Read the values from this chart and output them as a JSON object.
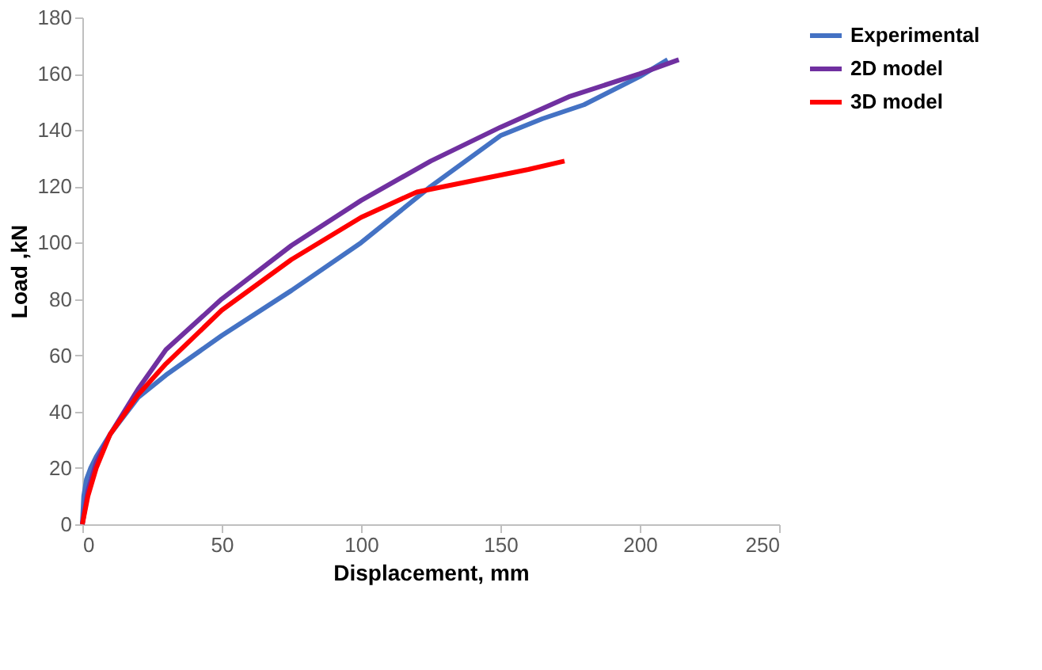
{
  "chart_data": {
    "type": "line",
    "xlabel": "Displacement, mm",
    "ylabel": "Load ,kN",
    "xlim": [
      0,
      250
    ],
    "ylim": [
      0,
      180
    ],
    "xticks": [
      0,
      50,
      100,
      150,
      200,
      250
    ],
    "yticks": [
      0,
      20,
      40,
      60,
      80,
      100,
      120,
      140,
      160,
      180
    ],
    "grid": false,
    "legend": "right",
    "marker": "none",
    "line_style": "solid",
    "series": [
      {
        "name": "Experimental",
        "color": "#4472c4",
        "x": [
          0,
          0.5,
          1.5,
          3,
          5,
          10,
          20,
          30,
          50,
          75,
          100,
          125,
          150,
          165,
          180,
          200,
          210
        ],
        "values": [
          0,
          10,
          16,
          20,
          24,
          32,
          45,
          53,
          67,
          83,
          100,
          120,
          138,
          144,
          149,
          159,
          165
        ]
      },
      {
        "name": "2D model",
        "color": "#7030a0",
        "x": [
          0,
          2,
          5,
          10,
          20,
          30,
          50,
          75,
          100,
          125,
          150,
          175,
          200,
          214
        ],
        "values": [
          0,
          12,
          22,
          32,
          48,
          62,
          80,
          99,
          115,
          129,
          141,
          152,
          160,
          165
        ]
      },
      {
        "name": "3D model",
        "color": "#ff0000",
        "x": [
          0,
          2,
          5,
          10,
          20,
          30,
          50,
          75,
          100,
          120,
          140,
          160,
          173
        ],
        "values": [
          0,
          10,
          20,
          32,
          46,
          57,
          76,
          94,
          109,
          118,
          122,
          126,
          129
        ]
      }
    ]
  }
}
